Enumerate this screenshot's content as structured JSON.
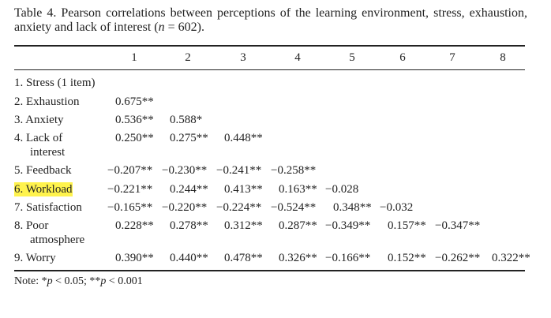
{
  "caption": [
    {
      "text": "Table 4.  Pearson correlations between perceptions of the learning environment, stress, exhaustion, anxiety and lack of interest ("
    },
    {
      "text": "n",
      "italic": true
    },
    {
      "text": " = 602)."
    }
  ],
  "table": {
    "columns": [
      "1",
      "2",
      "3",
      "4",
      "5",
      "6",
      "7",
      "8"
    ],
    "rows": [
      {
        "label": [
          "1. Stress (1 item)"
        ],
        "cells": []
      },
      {
        "label": [
          "2. Exhaustion"
        ],
        "cells": [
          "0.675**"
        ]
      },
      {
        "label": [
          "3. Anxiety"
        ],
        "cells": [
          "0.536**",
          "0.588*"
        ]
      },
      {
        "label": [
          "4. Lack of",
          "interest"
        ],
        "cells": [
          "0.250**",
          "0.275**",
          "0.448**"
        ]
      },
      {
        "label": [
          "5. Feedback"
        ],
        "cells": [
          "−0.207**",
          "−0.230**",
          "−0.241**",
          "−0.258**"
        ]
      },
      {
        "label": [
          "6. Workload"
        ],
        "highlight": true,
        "cells": [
          "−0.221**",
          "0.244**",
          "0.413**",
          "0.163**",
          "−0.028"
        ]
      },
      {
        "label": [
          "7. Satisfaction"
        ],
        "cells": [
          "−0.165**",
          "−0.220**",
          "−0.224**",
          "−0.524**",
          "0.348**",
          "−0.032"
        ]
      },
      {
        "label": [
          "8. Poor",
          "atmosphere"
        ],
        "cells": [
          "0.228**",
          "0.278**",
          "0.312**",
          "0.287**",
          "−0.349**",
          "0.157**",
          "−0.347**"
        ]
      },
      {
        "label": [
          "9. Worry"
        ],
        "cells": [
          "0.390**",
          "0.440**",
          "0.478**",
          "0.326**",
          "−0.166**",
          "0.152**",
          "−0.262**",
          "0.322**"
        ]
      }
    ]
  },
  "note": [
    {
      "text": "Note: *"
    },
    {
      "text": "p",
      "italic": true
    },
    {
      "text": " < 0.05; **"
    },
    {
      "text": "p",
      "italic": true
    },
    {
      "text": " < 0.001"
    }
  ]
}
